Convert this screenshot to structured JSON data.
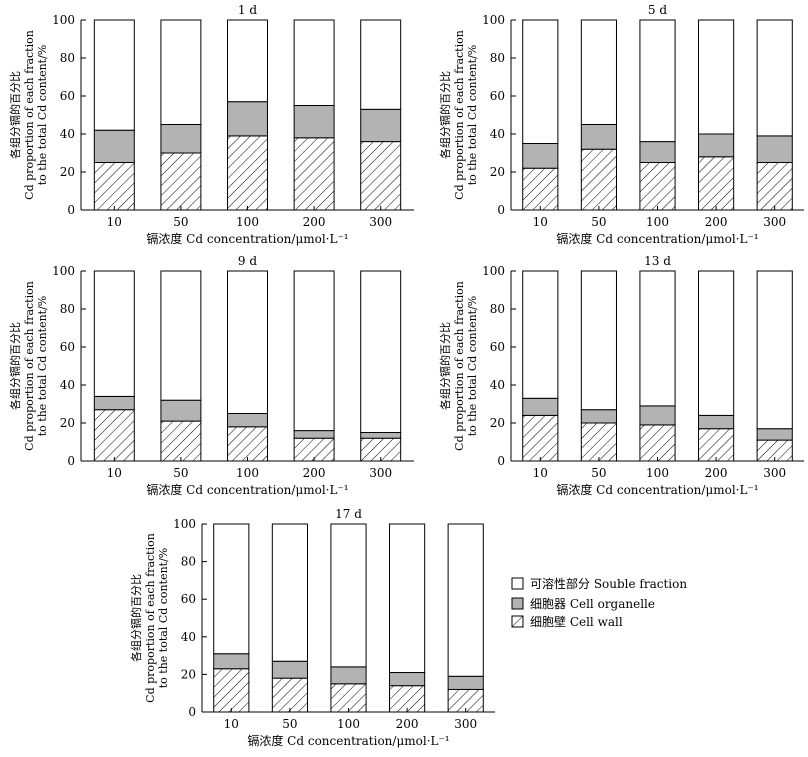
{
  "legend": {
    "items": [
      {
        "key": "soluble",
        "label": "可溶性部分 Souble fraction",
        "fill": "#ffffff"
      },
      {
        "key": "organelle",
        "label": "细胞器 Cell organelle",
        "fill": "#b3b3b3"
      },
      {
        "key": "wall",
        "label": "细胞壁 Cell wall",
        "fill": "hatch"
      }
    ]
  },
  "chart_data": [
    {
      "type": "bar",
      "stacked": true,
      "title": "1 d",
      "categories": [
        "10",
        "50",
        "100",
        "200",
        "300"
      ],
      "xlabel": "镉浓度 Cd concentration/μmol·L⁻¹",
      "ylabel": [
        "各组分镉的百分比",
        "Cd proportion of each fraction",
        "to the total Cd content/%"
      ],
      "ylim": [
        0,
        100
      ],
      "yticks": [
        0,
        20,
        40,
        60,
        80,
        100
      ],
      "series": [
        {
          "name": "细胞壁 Cell wall",
          "values": [
            25,
            30,
            39,
            38,
            36
          ]
        },
        {
          "name": "细胞器 Cell organelle",
          "values": [
            17,
            15,
            18,
            17,
            17
          ]
        },
        {
          "name": "可溶性部分 Souble fraction",
          "values": [
            58,
            55,
            43,
            45,
            47
          ]
        }
      ]
    },
    {
      "type": "bar",
      "stacked": true,
      "title": "5 d",
      "categories": [
        "10",
        "50",
        "100",
        "200",
        "300"
      ],
      "xlabel": "镉浓度 Cd concentration/μmol·L⁻¹",
      "ylabel": [
        "各组分镉的百分比",
        "Cd proportion of each fraction",
        "to the total Cd content/%"
      ],
      "ylim": [
        0,
        100
      ],
      "yticks": [
        0,
        20,
        40,
        60,
        80,
        100
      ],
      "series": [
        {
          "name": "细胞壁 Cell wall",
          "values": [
            22,
            32,
            25,
            28,
            25
          ]
        },
        {
          "name": "细胞器 Cell organelle",
          "values": [
            13,
            13,
            11,
            12,
            14
          ]
        },
        {
          "name": "可溶性部分 Souble fraction",
          "values": [
            65,
            55,
            64,
            60,
            61
          ]
        }
      ]
    },
    {
      "type": "bar",
      "stacked": true,
      "title": "9 d",
      "categories": [
        "10",
        "50",
        "100",
        "200",
        "300"
      ],
      "xlabel": "镉浓度 Cd concentration/μmol·L⁻¹",
      "ylabel": [
        "各组分镉的百分比",
        "Cd proportion of each fraction",
        "to the total Cd content/%"
      ],
      "ylim": [
        0,
        100
      ],
      "yticks": [
        0,
        20,
        40,
        60,
        80,
        100
      ],
      "series": [
        {
          "name": "细胞壁 Cell wall",
          "values": [
            27,
            21,
            18,
            12,
            12
          ]
        },
        {
          "name": "细胞器 Cell organelle",
          "values": [
            7,
            11,
            7,
            4,
            3
          ]
        },
        {
          "name": "可溶性部分 Souble fraction",
          "values": [
            66,
            68,
            75,
            84,
            85
          ]
        }
      ]
    },
    {
      "type": "bar",
      "stacked": true,
      "title": "13 d",
      "categories": [
        "10",
        "50",
        "100",
        "200",
        "300"
      ],
      "xlabel": "镉浓度 Cd concentration/μmol·L⁻¹",
      "ylabel": [
        "各组分镉的百分比",
        "Cd proportion of each fraction",
        "to the total Cd content/%"
      ],
      "ylim": [
        0,
        100
      ],
      "yticks": [
        0,
        20,
        40,
        60,
        80,
        100
      ],
      "series": [
        {
          "name": "细胞壁 Cell wall",
          "values": [
            24,
            20,
            19,
            17,
            11
          ]
        },
        {
          "name": "细胞器 Cell organelle",
          "values": [
            9,
            7,
            10,
            7,
            6
          ]
        },
        {
          "name": "可溶性部分 Souble fraction",
          "values": [
            67,
            73,
            71,
            76,
            83
          ]
        }
      ]
    },
    {
      "type": "bar",
      "stacked": true,
      "title": "17 d",
      "categories": [
        "10",
        "50",
        "100",
        "200",
        "300"
      ],
      "xlabel": "镉浓度 Cd concentration/μmol·L⁻¹",
      "ylabel": [
        "各组分镉的百分比",
        "Cd proportion of each fraction",
        "to the total Cd content/%"
      ],
      "ylim": [
        0,
        100
      ],
      "yticks": [
        0,
        20,
        40,
        60,
        80,
        100
      ],
      "series": [
        {
          "name": "细胞壁 Cell wall",
          "values": [
            23,
            18,
            15,
            14,
            12
          ]
        },
        {
          "name": "细胞器 Cell organelle",
          "values": [
            8,
            9,
            9,
            7,
            7
          ]
        },
        {
          "name": "可溶性部分 Souble fraction",
          "values": [
            69,
            73,
            76,
            79,
            81
          ]
        }
      ]
    }
  ]
}
